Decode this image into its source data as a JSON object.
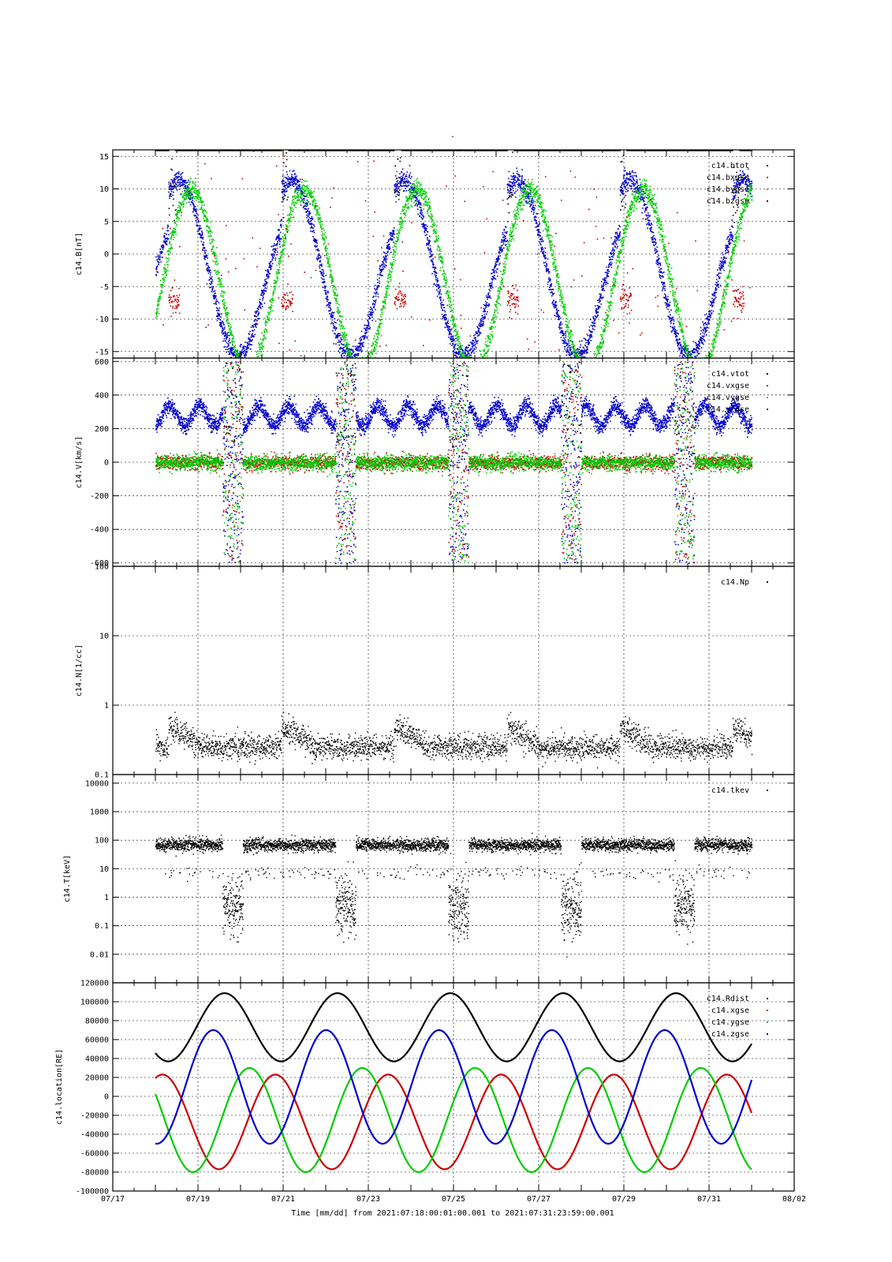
{
  "figure": {
    "title": "-",
    "xlabel": "Time [mm/dd]  from 2021:07:18:00:01:00.001  to  2021:07:31:23:59:00.001"
  },
  "chart_data": [
    {
      "type": "scatter",
      "ylabel": "c14.B[nT]",
      "yscale": "linear",
      "ylim": [
        -16,
        16
      ],
      "yticks": [
        "15",
        "10",
        "5",
        "0",
        "-5",
        "-10",
        "-15"
      ],
      "yticks_values": [
        15,
        10,
        5,
        0,
        -5,
        -10,
        -15
      ],
      "legend_position": "top-right",
      "series": [
        {
          "name": "c14.btot",
          "color": "#000000"
        },
        {
          "name": "c14.bxgse",
          "color": "#cc0000"
        },
        {
          "name": "c14.bygse",
          "color": "#00cc00"
        },
        {
          "name": "c14.bzgse",
          "color": "#0000cc"
        }
      ]
    },
    {
      "type": "scatter",
      "ylabel": "c14.V[km/s]",
      "yscale": "linear",
      "ylim": [
        -620,
        620
      ],
      "yticks": [
        "600",
        "400",
        "200",
        "0",
        "-200",
        "-400",
        "-600"
      ],
      "yticks_values": [
        600,
        400,
        200,
        0,
        -200,
        -400,
        -600
      ],
      "legend_position": "top-right",
      "series": [
        {
          "name": "c14.vtot",
          "color": "#000000"
        },
        {
          "name": "c14.vxgse",
          "color": "#cc0000"
        },
        {
          "name": "c14.vygse",
          "color": "#00cc00"
        },
        {
          "name": "c14.vzgse",
          "color": "#0000cc"
        }
      ]
    },
    {
      "type": "scatter",
      "ylabel": "c14.N[1/cc]",
      "yscale": "log",
      "ylim": [
        0.1,
        100
      ],
      "yticks": [
        "100",
        "10",
        "1",
        "0.1"
      ],
      "yticks_values": [
        100,
        10,
        1,
        0.1
      ],
      "legend_position": "top-right",
      "series": [
        {
          "name": "c14.Np",
          "color": "#000000"
        }
      ]
    },
    {
      "type": "scatter",
      "ylabel": "c14.T[keV]",
      "yscale": "log",
      "ylim": [
        0.001,
        20000
      ],
      "yticks": [
        "10000",
        "1000",
        "100",
        "10",
        "1",
        "0.1",
        "0.01"
      ],
      "yticks_values": [
        10000,
        1000,
        100,
        10,
        1,
        0.1,
        0.01
      ],
      "legend_position": "top-right",
      "series": [
        {
          "name": "c14.tkev",
          "color": "#000000"
        }
      ]
    },
    {
      "type": "line",
      "ylabel": "c14.location[RE]",
      "yscale": "linear",
      "ylim": [
        -100000,
        120000
      ],
      "yticks": [
        "120000",
        "100000",
        "80000",
        "60000",
        "40000",
        "20000",
        "0",
        "-20000",
        "-40000",
        "-60000",
        "-80000",
        "-100000"
      ],
      "yticks_values": [
        120000,
        100000,
        80000,
        60000,
        40000,
        20000,
        0,
        -20000,
        -40000,
        -60000,
        -80000,
        -100000
      ],
      "legend_position": "top-right",
      "series": [
        {
          "name": "c14.Rdist",
          "color": "#000000"
        },
        {
          "name": "c14.xgse",
          "color": "#cc0000"
        },
        {
          "name": "c14.ygse",
          "color": "#00cc00"
        },
        {
          "name": "c14.zgse",
          "color": "#0000cc"
        }
      ]
    }
  ],
  "x_axis": {
    "range": [
      "07/17",
      "08/02"
    ],
    "ticks": [
      "07/17",
      "07/19",
      "07/21",
      "07/23",
      "07/25",
      "07/27",
      "07/29",
      "07/31",
      "08/02"
    ],
    "grid": true
  }
}
